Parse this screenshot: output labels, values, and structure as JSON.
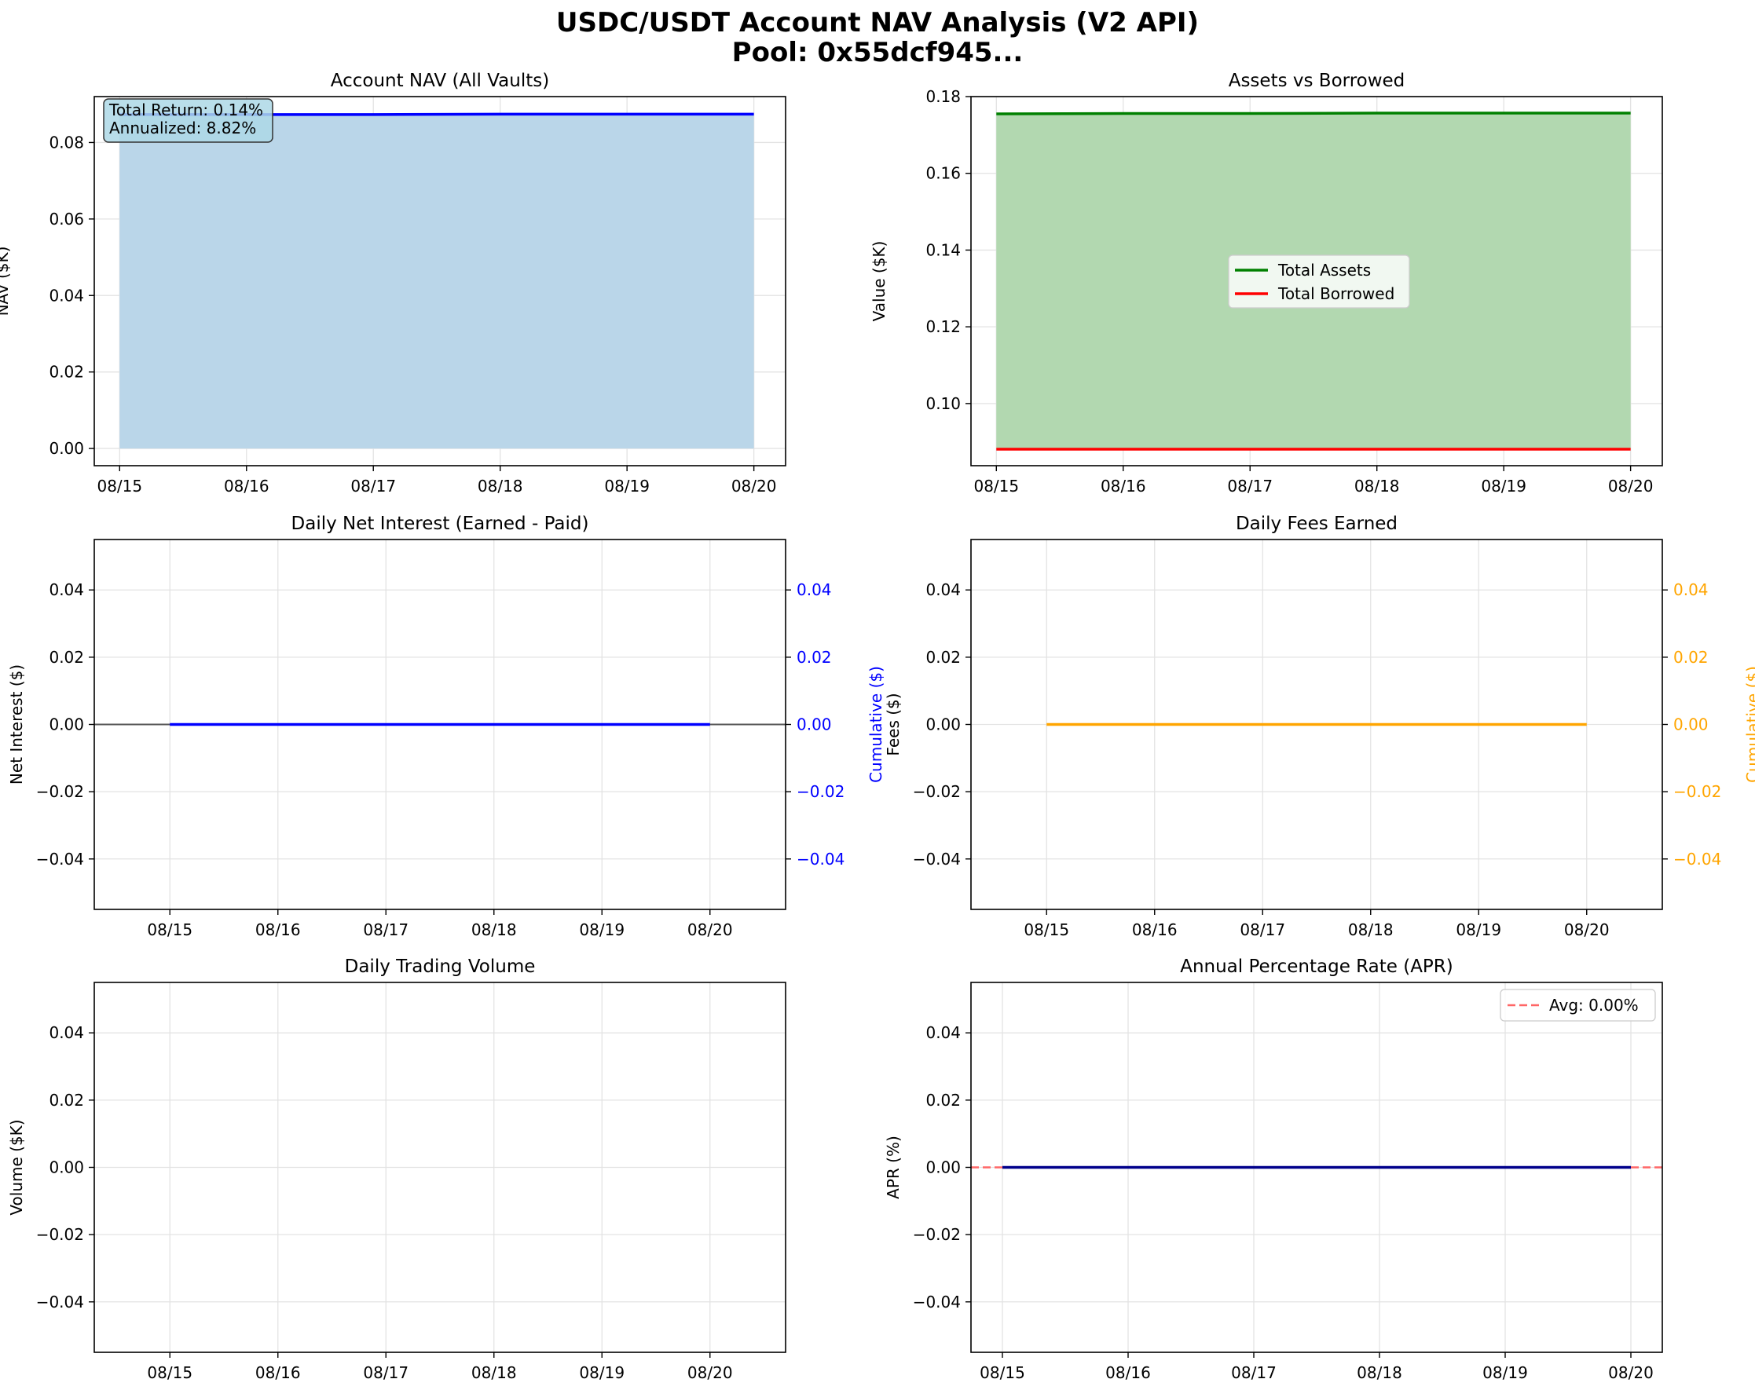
{
  "figure": {
    "title_line1": "USDC/USDT Account NAV Analysis (V2 API)",
    "title_line2": "Pool: 0x55dcf945..."
  },
  "chart_data": [
    {
      "id": "nav",
      "type": "area",
      "title": "Account NAV (All Vaults)",
      "xlabel": "",
      "ylabel": "NAV ($K)",
      "x": [
        "08/15",
        "08/16",
        "08/17",
        "08/18",
        "08/19",
        "08/20"
      ],
      "xlim": [
        -0.2,
        5.25
      ],
      "ylim": [
        -0.0045,
        0.092
      ],
      "yticks": [
        0.0,
        0.02,
        0.04,
        0.06,
        0.08
      ],
      "series": [
        {
          "values": [
            0.0873,
            0.0873,
            0.0873,
            0.0874,
            0.0874,
            0.0874
          ],
          "color": "#0000ff",
          "fill": "#bad6e9"
        }
      ],
      "annotation": [
        "Total Return: 0.14%",
        "Annualized: 8.82%"
      ],
      "grid": true
    },
    {
      "id": "assets",
      "type": "line",
      "title": "Assets vs Borrowed",
      "xlabel": "",
      "ylabel": "Value ($K)",
      "x": [
        "08/15",
        "08/16",
        "08/17",
        "08/18",
        "08/19",
        "08/20"
      ],
      "xlim": [
        -0.2,
        5.25
      ],
      "ylim": [
        0.0838,
        0.18
      ],
      "yticks": [
        0.1,
        0.12,
        0.14,
        0.16,
        0.18
      ],
      "series": [
        {
          "name": "Total Assets",
          "values": [
            0.1755,
            0.1756,
            0.1756,
            0.1757,
            0.1757,
            0.1757
          ],
          "color": "#008000"
        },
        {
          "name": "Total Borrowed",
          "values": [
            0.0881,
            0.0881,
            0.0881,
            0.0881,
            0.0881,
            0.0881
          ],
          "color": "#ff0000"
        }
      ],
      "fill_between": "#b2d8b0",
      "legend": "center",
      "grid": true
    },
    {
      "id": "interest",
      "type": "line",
      "title": "Daily Net Interest (Earned - Paid)",
      "xlabel": "",
      "ylabel": "Net Interest ($)",
      "ylabel_right": "Cumulative ($)",
      "right_color": "#0000ff",
      "x": [
        "08/15",
        "08/16",
        "08/17",
        "08/18",
        "08/19",
        "08/20"
      ],
      "xlim": [
        -0.7,
        5.7
      ],
      "ylim": [
        -0.055,
        0.055
      ],
      "yticks": [
        -0.04,
        -0.02,
        0.0,
        0.02,
        0.04
      ],
      "series": [
        {
          "values": [
            0,
            0,
            0,
            0,
            0,
            0
          ],
          "color": "#0000ff"
        }
      ],
      "zero_line": true,
      "grid": true
    },
    {
      "id": "fees",
      "type": "line",
      "title": "Daily Fees Earned",
      "xlabel": "",
      "ylabel": "Fees ($)",
      "ylabel_right": "Cumulative ($)",
      "right_color": "#ffa500",
      "x": [
        "08/15",
        "08/16",
        "08/17",
        "08/18",
        "08/19",
        "08/20"
      ],
      "xlim": [
        -0.7,
        5.7
      ],
      "ylim": [
        -0.055,
        0.055
      ],
      "yticks": [
        -0.04,
        -0.02,
        0.0,
        0.02,
        0.04
      ],
      "series": [
        {
          "values": [
            0,
            0,
            0,
            0,
            0,
            0
          ],
          "color": "#ffa500"
        }
      ],
      "grid": true
    },
    {
      "id": "volume",
      "type": "bar",
      "title": "Daily Trading Volume",
      "xlabel": "",
      "ylabel": "Volume ($K)",
      "x": [
        "08/15",
        "08/16",
        "08/17",
        "08/18",
        "08/19",
        "08/20"
      ],
      "xlim": [
        -0.7,
        5.7
      ],
      "ylim": [
        -0.055,
        0.055
      ],
      "yticks": [
        -0.04,
        -0.02,
        0.0,
        0.02,
        0.04
      ],
      "series": [],
      "grid": true
    },
    {
      "id": "apr",
      "type": "line",
      "title": "Annual Percentage Rate (APR)",
      "xlabel": "",
      "ylabel": "APR (%)",
      "x": [
        "08/15",
        "08/16",
        "08/17",
        "08/18",
        "08/19",
        "08/20"
      ],
      "xlim": [
        -0.25,
        5.25
      ],
      "ylim": [
        -0.055,
        0.055
      ],
      "yticks": [
        -0.04,
        -0.02,
        0.0,
        0.02,
        0.04
      ],
      "series": [
        {
          "values": [
            0,
            0,
            0,
            0,
            0,
            0
          ],
          "color": "#00008b"
        }
      ],
      "avg_line": {
        "name": "Avg: 0.00%",
        "value": 0.0,
        "color": "#ff6666"
      },
      "legend": "top-right",
      "grid": true
    }
  ]
}
